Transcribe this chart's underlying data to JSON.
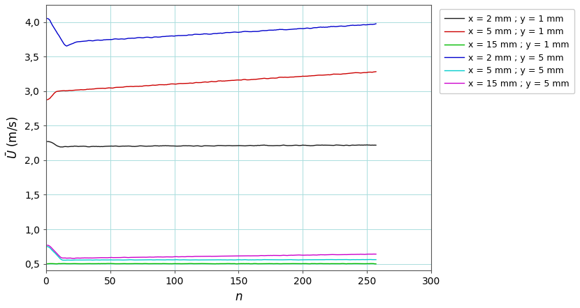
{
  "title": "",
  "xlabel": "n",
  "ylabel": "$\\bar{U}$ (m/s)",
  "xlim": [
    0,
    300
  ],
  "ylim": [
    0.4,
    4.25
  ],
  "yticks": [
    0.5,
    1.0,
    1.5,
    2.0,
    2.5,
    3.0,
    3.5,
    4.0
  ],
  "ytick_labels": [
    "0,5",
    "1,0",
    "1,5",
    "2,0",
    "2,5",
    "3,0",
    "3,5",
    "4,0"
  ],
  "xticks": [
    0,
    50,
    100,
    150,
    200,
    250,
    300
  ],
  "series": [
    {
      "label": "x = 2 mm ; y = 1 mm",
      "color": "#1a1a1a",
      "linewidth": 1.0
    },
    {
      "label": "x = 5 mm ; y = 1 mm",
      "color": "#cc0000",
      "linewidth": 1.0
    },
    {
      "label": "x = 15 mm ; y = 1 mm",
      "color": "#00bb00",
      "linewidth": 1.0
    },
    {
      "label": "x = 2 mm ; y = 5 mm",
      "color": "#0000cc",
      "linewidth": 1.0
    },
    {
      "label": "x = 5 mm ; y = 5 mm",
      "color": "#00cccc",
      "linewidth": 1.0
    },
    {
      "label": "x = 15 mm ; y = 5 mm",
      "color": "#cc00cc",
      "linewidth": 1.0
    }
  ],
  "background_color": "#ffffff",
  "grid_color": "#aadddd",
  "legend_fontsize": 9,
  "tick_fontsize": 10,
  "xlabel_fontsize": 12,
  "ylabel_fontsize": 12
}
